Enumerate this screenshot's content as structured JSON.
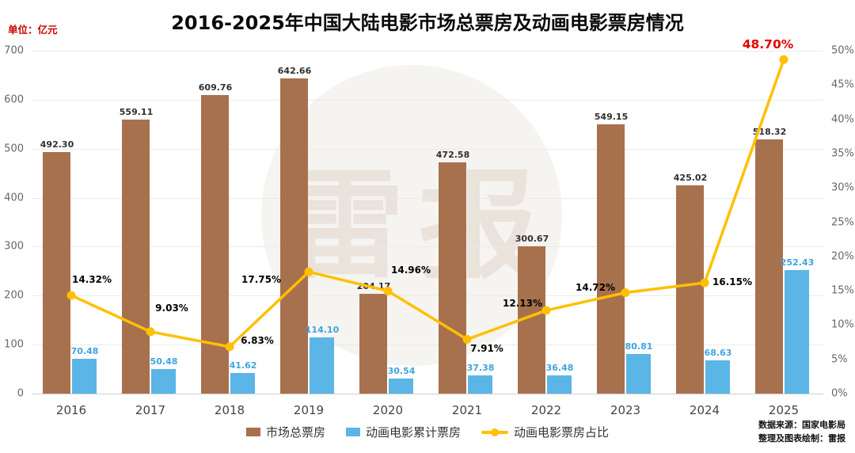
{
  "header": {
    "unit_label": "单位：亿元",
    "title": "2016-2025年中国大陆电影市场总票房及动画电影票房情况"
  },
  "chart_data": {
    "type": "bar",
    "subtype": "grouped-bars-with-line",
    "categories": [
      "2016",
      "2017",
      "2018",
      "2019",
      "2020",
      "2021",
      "2022",
      "2023",
      "2024",
      "2025"
    ],
    "series": [
      {
        "name": "市场总票房",
        "type": "bar",
        "axis": "left",
        "color": "#A8714D",
        "values": [
          492.3,
          559.11,
          609.76,
          642.66,
          204.17,
          472.58,
          300.67,
          549.15,
          425.02,
          518.32
        ]
      },
      {
        "name": "动画电影累计票房",
        "type": "bar",
        "axis": "left",
        "color": "#5BB5E7",
        "values": [
          70.48,
          50.48,
          41.62,
          114.1,
          30.54,
          37.38,
          36.48,
          80.81,
          68.63,
          252.43
        ]
      },
      {
        "name": "动画电影票房占比",
        "type": "line",
        "axis": "right",
        "color": "#FFC000",
        "values": [
          14.32,
          9.03,
          6.83,
          17.75,
          14.96,
          7.91,
          12.13,
          14.72,
          16.15,
          48.7
        ]
      }
    ],
    "left_axis": {
      "min": 0,
      "max": 700,
      "step": 100,
      "ticks": [
        "0",
        "100",
        "200",
        "300",
        "400",
        "500",
        "600",
        "700"
      ]
    },
    "right_axis": {
      "min": 0,
      "max": 50,
      "step": 5,
      "ticks": [
        "0%",
        "5%",
        "10%",
        "15%",
        "20%",
        "25%",
        "30%",
        "35%",
        "40%",
        "45%",
        "50%"
      ]
    },
    "grid": "horizontal",
    "legend_position": "bottom",
    "highlight_last_percent_color": "#E60000"
  },
  "footer": {
    "source_line1": "数据来源：国家电影局",
    "source_line2": "整理及图表绘制：雷报"
  },
  "watermark": "雷报"
}
